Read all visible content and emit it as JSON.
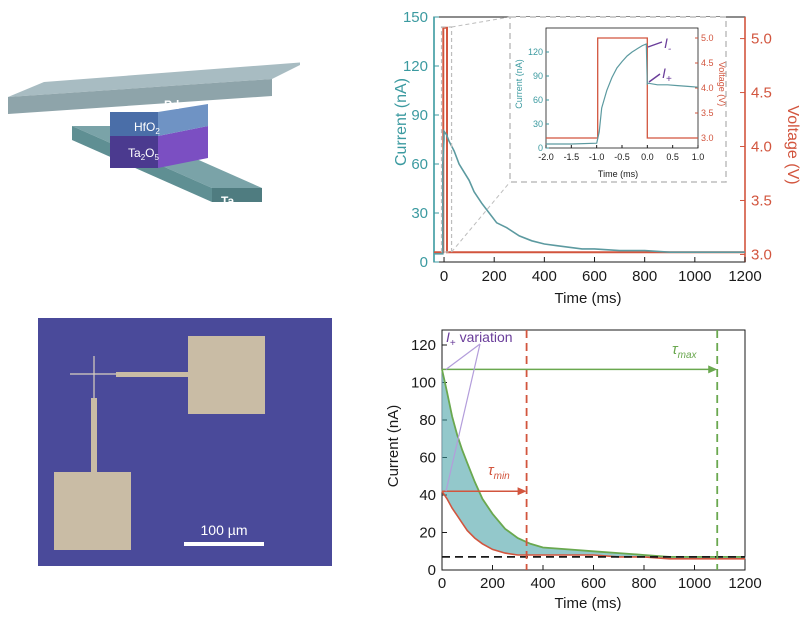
{
  "device": {
    "layer_pd": "Pd",
    "layer_hfo2": "HfO",
    "layer_hfo2_sub": "2",
    "layer_ta2o5_a": "Ta",
    "layer_ta2o5_sub1": "2",
    "layer_ta2o5_b": "O",
    "layer_ta2o5_sub2": "5",
    "layer_ta": "Ta"
  },
  "micrograph": {
    "scale_label": "100 µm",
    "colors": {
      "background": "#4a4a9a",
      "pad": "#c9bca5"
    }
  },
  "colors": {
    "current": "#3b9aa0",
    "voltage": "#d2553e",
    "tau_max": "#6aa84f",
    "annotation": "#6a3d9a"
  },
  "chart_data": [
    {
      "type": "line",
      "id": "pulse-response",
      "xlabel": "Time (ms)",
      "ylabel": "Current (nA)",
      "y2label": "Voltage (V)",
      "xlim": [
        -40,
        1200
      ],
      "ylim": [
        0,
        150
      ],
      "y2lim": [
        2.93,
        5.2
      ],
      "xticks": [
        "0",
        "200",
        "400",
        "600",
        "800",
        "1000",
        "1200"
      ],
      "xtick_values": [
        0,
        200,
        400,
        600,
        800,
        1000,
        1200
      ],
      "yticks": [
        "0",
        "30",
        "60",
        "90",
        "120",
        "150"
      ],
      "ytick_values": [
        0,
        30,
        60,
        90,
        120,
        150
      ],
      "y2ticks": [
        "3.0",
        "3.5",
        "4.0",
        "4.5",
        "5.0"
      ],
      "y2tick_values": [
        3.0,
        3.5,
        4.0,
        4.5,
        5.0
      ],
      "series": [
        {
          "name": "Current",
          "x": [
            -40,
            -5,
            -5,
            0,
            0,
            10,
            20,
            40,
            60,
            80,
            100,
            120,
            150,
            180,
            210,
            250,
            300,
            350,
            400,
            450,
            500,
            550,
            600,
            700,
            800,
            900,
            1000,
            1100,
            1200
          ],
          "y": [
            5,
            5,
            60,
            75,
            80,
            78,
            74,
            68,
            60,
            55,
            50,
            43,
            36,
            30,
            24,
            21,
            16,
            13,
            11,
            10,
            9,
            8,
            8,
            7,
            7,
            6,
            6,
            6,
            6
          ]
        },
        {
          "name": "Voltage",
          "x": [
            -40,
            -3,
            -3,
            12,
            12,
            1200
          ],
          "y": [
            3.02,
            3.02,
            5.1,
            5.1,
            3.02,
            3.02
          ]
        }
      ],
      "inset": {
        "xlabel": "Time (ms)",
        "ylabel": "Current (nA)",
        "y2label": "Voltage (V)",
        "xlim": [
          -2.0,
          1.0
        ],
        "ylim": [
          0,
          150
        ],
        "y2lim": [
          2.8,
          5.2
        ],
        "xticks": [
          "-2.0",
          "-1.5",
          "-1.0",
          "-0.5",
          "0.0",
          "0.5",
          "1.0"
        ],
        "xtick_values": [
          -2.0,
          -1.5,
          -1.0,
          -0.5,
          0.0,
          0.5,
          1.0
        ],
        "yticks": [
          "0",
          "30",
          "60",
          "90",
          "120"
        ],
        "ytick_values": [
          0,
          30,
          60,
          90,
          120
        ],
        "y2ticks": [
          "3.0",
          "3.5",
          "4.0",
          "4.5",
          "5.0"
        ],
        "y2tick_values": [
          3.0,
          3.5,
          4.0,
          4.5,
          5.0
        ],
        "label_minus": "I",
        "label_minus_sub": "-",
        "label_plus": "I",
        "label_plus_sub": "+",
        "series": [
          {
            "name": "Current",
            "x": [
              -2.0,
              -1.5,
              -1.0,
              -0.95,
              -0.9,
              -0.8,
              -0.7,
              -0.6,
              -0.5,
              -0.4,
              -0.3,
              -0.2,
              -0.1,
              -0.02,
              0.0,
              0.02,
              0.2,
              0.4,
              0.6,
              0.8,
              1.0
            ],
            "y": [
              5,
              5,
              6,
              20,
              50,
              72,
              88,
              100,
              108,
              115,
              120,
              124,
              128,
              130,
              80,
              81,
              79,
              79,
              78,
              77,
              76
            ]
          },
          {
            "name": "Voltage",
            "x": [
              -2.0,
              -0.98,
              -0.98,
              0.0,
              0.0,
              1.0
            ],
            "y": [
              3.0,
              3.0,
              5.0,
              5.0,
              3.0,
              3.0
            ]
          }
        ]
      }
    },
    {
      "type": "line",
      "id": "relaxation-variation",
      "xlabel": "Time (ms)",
      "ylabel": "Current (nA)",
      "xlim": [
        0,
        1200
      ],
      "ylim": [
        0,
        128
      ],
      "xticks": [
        "0",
        "200",
        "400",
        "600",
        "800",
        "1000",
        "1200"
      ],
      "xtick_values": [
        0,
        200,
        400,
        600,
        800,
        1000,
        1200
      ],
      "yticks": [
        "0",
        "20",
        "40",
        "60",
        "80",
        "100",
        "120"
      ],
      "ytick_values": [
        0,
        20,
        40,
        60,
        80,
        100,
        120
      ],
      "annotation_i": "I",
      "annotation_sub": "+",
      "annotation_text": " variation",
      "tau_min_label": "τ",
      "tau_min_sub": "min",
      "tau_max_label": "τ",
      "tau_max_sub": "max",
      "tau_min_x": 335,
      "tau_max_x": 1090,
      "baseline_y": 7,
      "series": [
        {
          "name": "",
          "x": [
            0,
            20,
            40,
            60,
            80,
            100,
            130,
            160,
            200,
            250,
            300,
            350,
            400,
            500,
            600,
            700,
            800,
            900,
            1000,
            1100,
            1200
          ],
          "y": [
            107,
            95,
            82,
            72,
            64,
            57,
            47,
            38,
            30,
            22,
            17,
            14,
            12,
            11,
            10,
            9,
            8,
            7,
            7,
            7,
            7
          ]
        },
        {
          "name": "",
          "x": [
            0,
            20,
            40,
            60,
            80,
            100,
            130,
            160,
            200,
            250,
            300,
            350,
            400,
            500,
            600,
            700,
            800,
            900,
            1000,
            1100,
            1200
          ],
          "y": [
            42,
            38,
            33,
            29,
            25,
            21,
            17,
            14,
            11,
            9,
            8,
            8,
            8,
            8,
            8,
            7,
            7,
            6,
            6,
            6,
            6
          ]
        }
      ]
    }
  ]
}
